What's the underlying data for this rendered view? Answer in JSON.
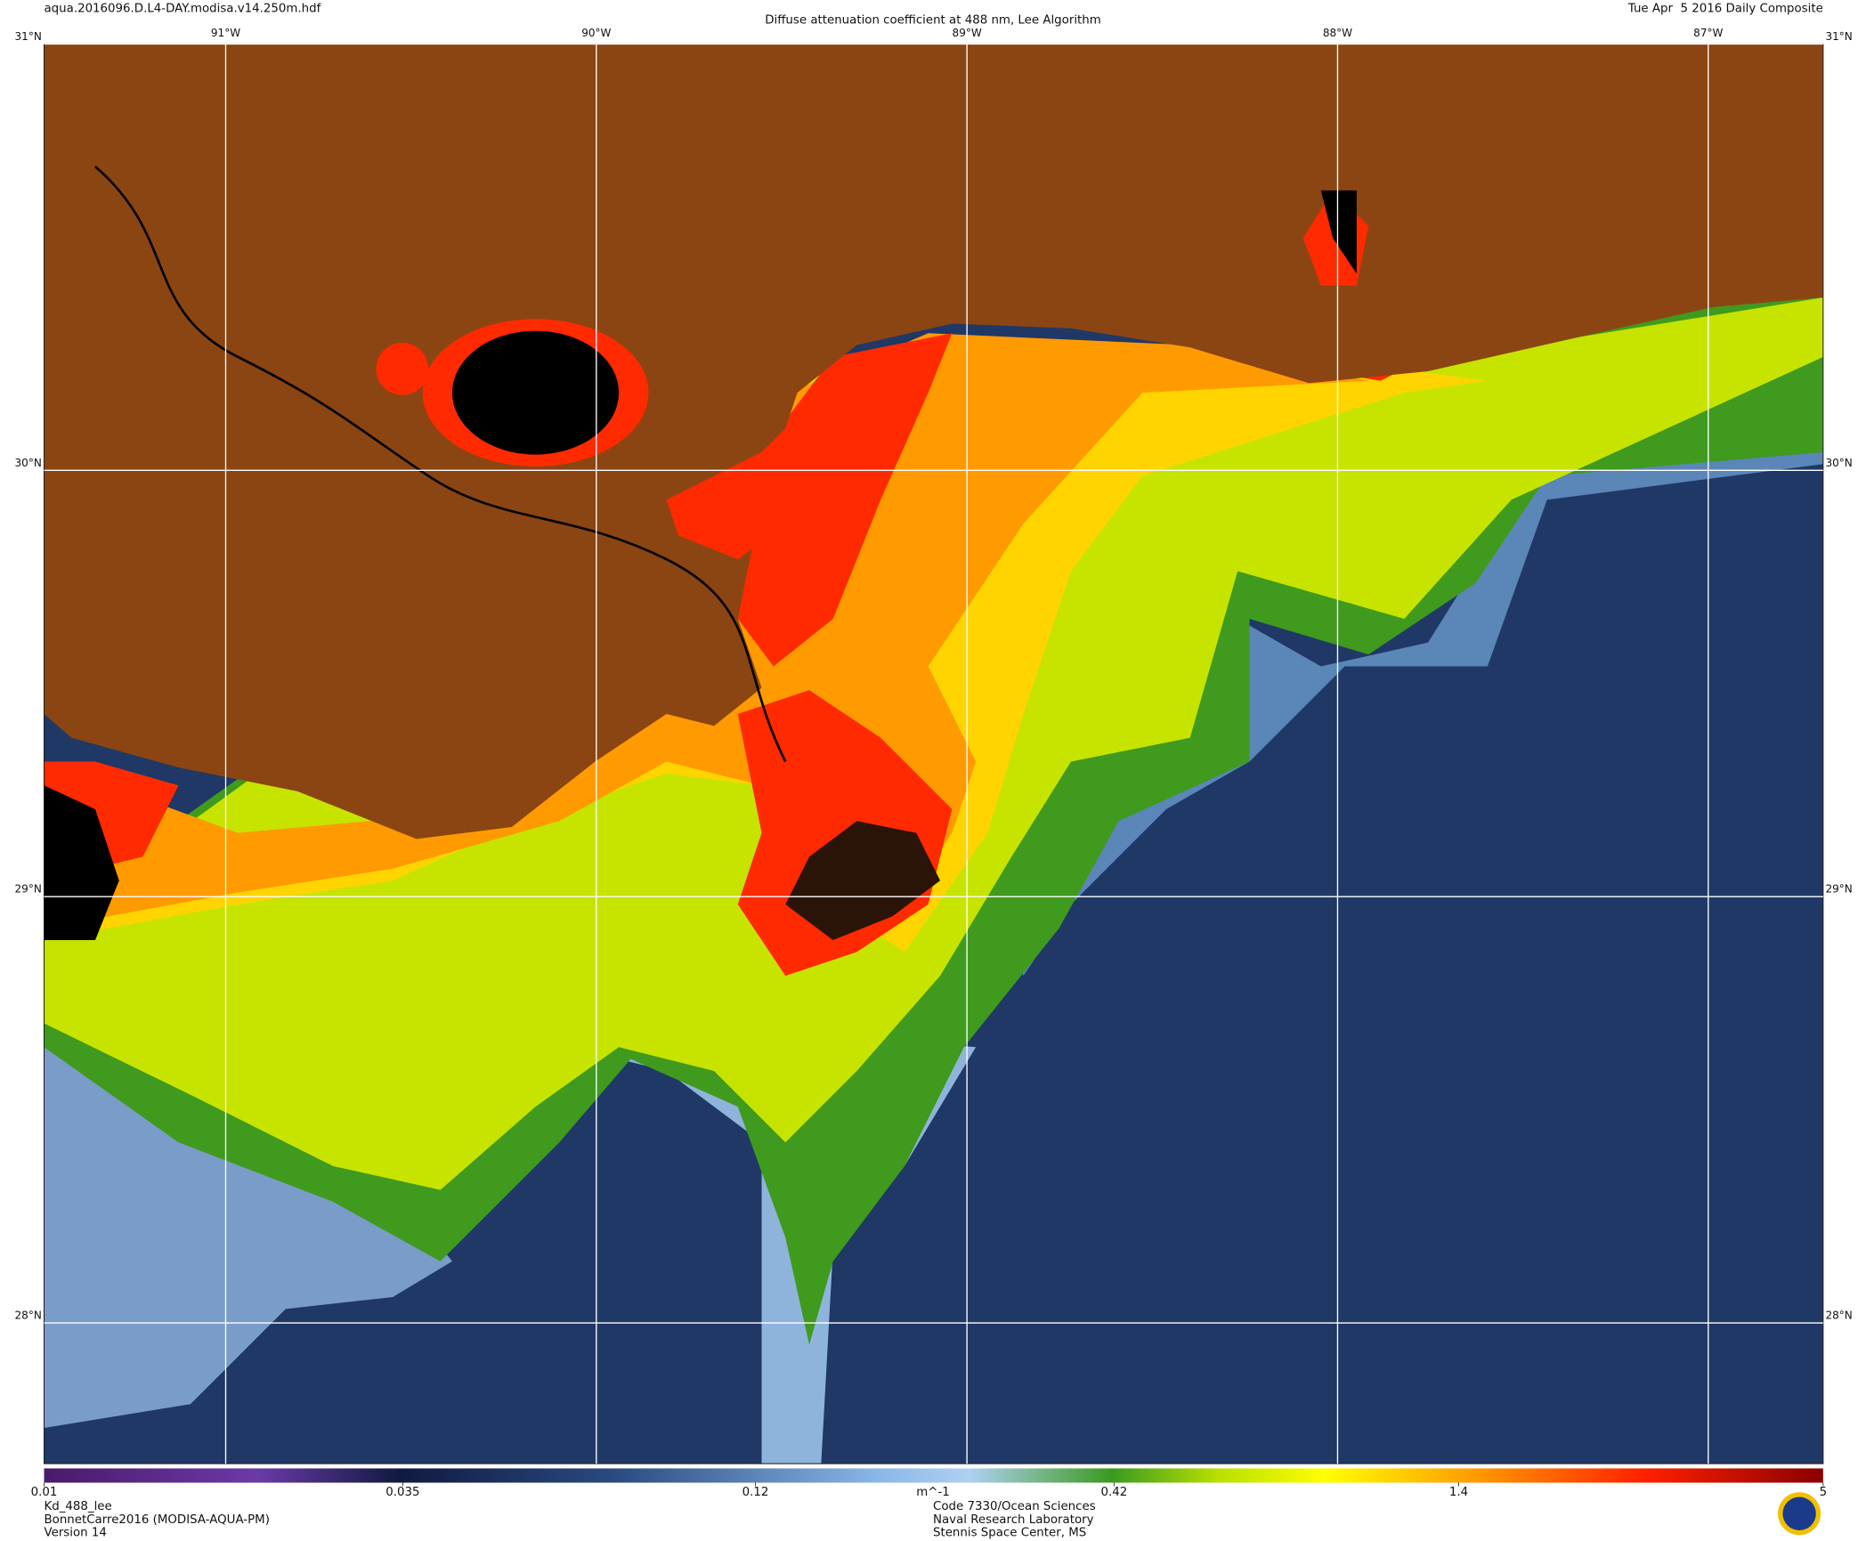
{
  "header": {
    "file": "aqua.2016096.D.L4-DAY.modisa.v14.250m.hdf",
    "title": "Diffuse attenuation coefficient at 488 nm, Lee Algorithm",
    "date": "Tue Apr  5 2016 Daily Composite"
  },
  "map": {
    "lon_range": [
      -91.49,
      -86.69
    ],
    "lat_range": [
      27.67,
      31.0
    ],
    "lon_ticks": [
      {
        "value": -91,
        "label": "91°W"
      },
      {
        "value": -90,
        "label": "90°W"
      },
      {
        "value": -89,
        "label": "89°W"
      },
      {
        "value": -88,
        "label": "88°W"
      },
      {
        "value": -87,
        "label": "87°W"
      }
    ],
    "lat_ticks": [
      {
        "value": 31,
        "label": "31°N"
      },
      {
        "value": 30,
        "label": "30°N"
      },
      {
        "value": 29,
        "label": "29°N"
      },
      {
        "value": 28,
        "label": "28°N"
      }
    ],
    "grid": true
  },
  "colorbar": {
    "lim": [
      0.01,
      5
    ],
    "log": true,
    "unit": "m^-1",
    "ticks": [
      0.01,
      0.035,
      0.12,
      0.42,
      1.4,
      5
    ]
  },
  "footer": {
    "product": "Kd_488_lee",
    "dataset": "BonnetCarre2016 (MODISA-AQUA-PM)",
    "version": "Version 14",
    "org_lines": [
      "Code 7330/Ocean Sciences",
      "Naval Research Laboratory",
      "Stennis Space Center, MS"
    ]
  }
}
